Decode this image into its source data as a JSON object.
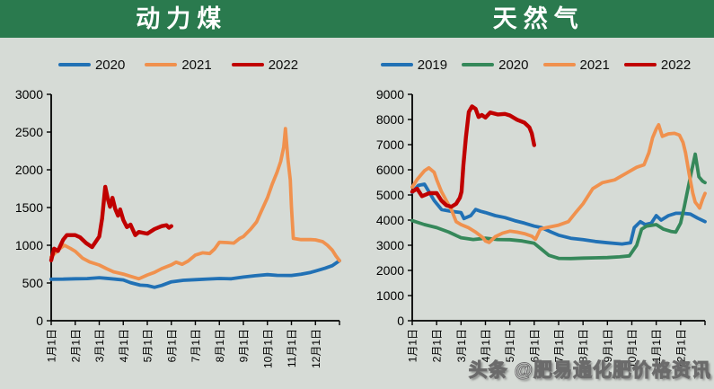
{
  "page": {
    "background": "#d6dbd6",
    "header_color": "#2a7a4e",
    "axis_color": "#000000"
  },
  "watermark": {
    "text": "头条 @肥易通化肥价格资讯"
  },
  "chart_data": [
    {
      "type": "line",
      "title": "动力煤",
      "xlim": [
        1,
        13
      ],
      "ylim": [
        0,
        3000
      ],
      "grid": false,
      "legend_position": "top",
      "y_ticks": [
        0,
        500,
        1000,
        1500,
        2000,
        2500,
        3000
      ],
      "x_tick_labels": [
        "1月1日",
        "2月1日",
        "3月1日",
        "4月1日",
        "5月1日",
        "6月1日",
        "7月1日",
        "8月1日",
        "9月1日",
        "10月1日",
        "11月1日",
        "12月1日"
      ],
      "series": [
        {
          "name": "2020",
          "color": "#2171b5",
          "width": 3.8,
          "points": [
            [
              1,
              550
            ],
            [
              1.5,
              551
            ],
            [
              2,
              556
            ],
            [
              2.5,
              558
            ],
            [
              3,
              570
            ],
            [
              3.3,
              562
            ],
            [
              3.7,
              550
            ],
            [
              4,
              540
            ],
            [
              4.3,
              505
            ],
            [
              4.7,
              472
            ],
            [
              5,
              465
            ],
            [
              5.3,
              443
            ],
            [
              5.6,
              468
            ],
            [
              6,
              515
            ],
            [
              6.5,
              536
            ],
            [
              7,
              544
            ],
            [
              7.5,
              552
            ],
            [
              8,
              559
            ],
            [
              8.5,
              556
            ],
            [
              9,
              579
            ],
            [
              9.5,
              596
            ],
            [
              10,
              611
            ],
            [
              10.4,
              601
            ],
            [
              11,
              600
            ],
            [
              11.4,
              617
            ],
            [
              11.8,
              640
            ],
            [
              12,
              658
            ],
            [
              12.4,
              695
            ],
            [
              12.7,
              730
            ],
            [
              13,
              795
            ]
          ]
        },
        {
          "name": "2021",
          "color": "#f0914e",
          "width": 3.8,
          "points": [
            [
              1,
              845
            ],
            [
              1.3,
              940
            ],
            [
              1.55,
              1000
            ],
            [
              1.8,
              958
            ],
            [
              2,
              920
            ],
            [
              2.3,
              830
            ],
            [
              2.6,
              778
            ],
            [
              3,
              738
            ],
            [
              3.3,
              690
            ],
            [
              3.6,
              648
            ],
            [
              4,
              618
            ],
            [
              4.3,
              588
            ],
            [
              4.65,
              556
            ],
            [
              5,
              606
            ],
            [
              5.3,
              641
            ],
            [
              5.6,
              690
            ],
            [
              6,
              740
            ],
            [
              6.2,
              776
            ],
            [
              6.45,
              748
            ],
            [
              6.7,
              790
            ],
            [
              7,
              870
            ],
            [
              7.3,
              900
            ],
            [
              7.6,
              890
            ],
            [
              7.8,
              950
            ],
            [
              8,
              1040
            ],
            [
              8.3,
              1036
            ],
            [
              8.6,
              1028
            ],
            [
              8.85,
              1092
            ],
            [
              9,
              1115
            ],
            [
              9.3,
              1212
            ],
            [
              9.55,
              1310
            ],
            [
              9.75,
              1455
            ],
            [
              10,
              1630
            ],
            [
              10.2,
              1810
            ],
            [
              10.4,
              1968
            ],
            [
              10.55,
              2110
            ],
            [
              10.68,
              2300
            ],
            [
              10.75,
              2545
            ],
            [
              10.85,
              2150
            ],
            [
              10.95,
              1868
            ],
            [
              11,
              1510
            ],
            [
              11.08,
              1090
            ],
            [
              11.4,
              1075
            ],
            [
              11.8,
              1075
            ],
            [
              12,
              1072
            ],
            [
              12.3,
              1048
            ],
            [
              12.5,
              1000
            ],
            [
              12.7,
              935
            ],
            [
              12.85,
              860
            ],
            [
              13,
              797
            ]
          ]
        },
        {
          "name": "2022",
          "color": "#c00000",
          "width": 4.4,
          "points": [
            [
              1,
              800
            ],
            [
              1.12,
              955
            ],
            [
              1.28,
              924
            ],
            [
              1.5,
              1075
            ],
            [
              1.65,
              1134
            ],
            [
              2,
              1134
            ],
            [
              2.2,
              1106
            ],
            [
              2.45,
              1030
            ],
            [
              2.7,
              975
            ],
            [
              3,
              1115
            ],
            [
              3.12,
              1355
            ],
            [
              3.25,
              1775
            ],
            [
              3.37,
              1598
            ],
            [
              3.45,
              1510
            ],
            [
              3.55,
              1630
            ],
            [
              3.67,
              1478
            ],
            [
              3.78,
              1392
            ],
            [
              3.87,
              1475
            ],
            [
              4,
              1335
            ],
            [
              4.15,
              1240
            ],
            [
              4.3,
              1274
            ],
            [
              4.5,
              1134
            ],
            [
              4.65,
              1176
            ],
            [
              5,
              1154
            ],
            [
              5.3,
              1214
            ],
            [
              5.6,
              1254
            ],
            [
              5.8,
              1266
            ],
            [
              5.9,
              1232
            ],
            [
              6,
              1254
            ]
          ]
        }
      ]
    },
    {
      "type": "line",
      "title": "天然气",
      "xlim": [
        1,
        13
      ],
      "ylim": [
        0,
        9000
      ],
      "grid": false,
      "legend_position": "top",
      "y_ticks": [
        0,
        1000,
        2000,
        3000,
        4000,
        5000,
        6000,
        7000,
        8000,
        9000
      ],
      "x_tick_labels": [
        "1月1日",
        "2月1日",
        "3月1日",
        "4月1日",
        "5月1日",
        "6月1日",
        "7月1日",
        "8月1日",
        "9月1日",
        "10月1日",
        "11月1日",
        "12月1日"
      ],
      "series": [
        {
          "name": "2019",
          "color": "#2171b5",
          "width": 3.8,
          "points": [
            [
              1,
              5100
            ],
            [
              1.25,
              5380
            ],
            [
              1.5,
              5430
            ],
            [
              1.9,
              4780
            ],
            [
              2.2,
              4420
            ],
            [
              2.6,
              4350
            ],
            [
              3,
              4300
            ],
            [
              3.12,
              4060
            ],
            [
              3.4,
              4180
            ],
            [
              3.6,
              4420
            ],
            [
              3.8,
              4350
            ],
            [
              4,
              4300
            ],
            [
              4.4,
              4180
            ],
            [
              4.8,
              4100
            ],
            [
              5.2,
              3980
            ],
            [
              5.6,
              3880
            ],
            [
              6,
              3760
            ],
            [
              6.3,
              3700
            ],
            [
              6.7,
              3520
            ],
            [
              7,
              3400
            ],
            [
              7.5,
              3280
            ],
            [
              8,
              3220
            ],
            [
              8.5,
              3150
            ],
            [
              9,
              3100
            ],
            [
              9.6,
              3050
            ],
            [
              9.95,
              3100
            ],
            [
              10.1,
              3700
            ],
            [
              10.35,
              3940
            ],
            [
              10.55,
              3820
            ],
            [
              10.8,
              3880
            ],
            [
              11,
              4180
            ],
            [
              11.2,
              4000
            ],
            [
              11.5,
              4180
            ],
            [
              11.8,
              4270
            ],
            [
              12.1,
              4270
            ],
            [
              12.4,
              4240
            ],
            [
              12.7,
              4080
            ],
            [
              13,
              3940
            ]
          ]
        },
        {
          "name": "2020",
          "color": "#35885a",
          "width": 3.8,
          "points": [
            [
              1,
              3980
            ],
            [
              1.5,
              3820
            ],
            [
              2,
              3700
            ],
            [
              2.5,
              3520
            ],
            [
              3,
              3300
            ],
            [
              3.5,
              3230
            ],
            [
              4,
              3280
            ],
            [
              4.5,
              3230
            ],
            [
              5,
              3220
            ],
            [
              5.5,
              3170
            ],
            [
              6,
              3080
            ],
            [
              6.3,
              2840
            ],
            [
              6.6,
              2600
            ],
            [
              7,
              2480
            ],
            [
              7.5,
              2470
            ],
            [
              8,
              2490
            ],
            [
              8.5,
              2500
            ],
            [
              9,
              2510
            ],
            [
              9.5,
              2540
            ],
            [
              9.9,
              2580
            ],
            [
              10.2,
              3000
            ],
            [
              10.4,
              3640
            ],
            [
              10.6,
              3760
            ],
            [
              11,
              3820
            ],
            [
              11.3,
              3640
            ],
            [
              11.6,
              3550
            ],
            [
              11.8,
              3520
            ],
            [
              12,
              3880
            ],
            [
              12.15,
              4530
            ],
            [
              12.3,
              5250
            ],
            [
              12.45,
              5960
            ],
            [
              12.6,
              6620
            ],
            [
              12.75,
              5720
            ],
            [
              12.9,
              5550
            ],
            [
              13,
              5490
            ]
          ]
        },
        {
          "name": "2021",
          "color": "#f0914e",
          "width": 3.8,
          "points": [
            [
              1,
              5310
            ],
            [
              1.2,
              5610
            ],
            [
              1.5,
              5960
            ],
            [
              1.68,
              6080
            ],
            [
              1.9,
              5900
            ],
            [
              2,
              5610
            ],
            [
              2.2,
              5130
            ],
            [
              2.4,
              4770
            ],
            [
              2.6,
              4420
            ],
            [
              2.8,
              3940
            ],
            [
              3,
              3820
            ],
            [
              3.3,
              3700
            ],
            [
              3.6,
              3520
            ],
            [
              3.9,
              3300
            ],
            [
              4,
              3170
            ],
            [
              4.15,
              3110
            ],
            [
              4.4,
              3340
            ],
            [
              4.7,
              3480
            ],
            [
              5,
              3560
            ],
            [
              5.3,
              3520
            ],
            [
              5.6,
              3460
            ],
            [
              5.9,
              3360
            ],
            [
              6.05,
              3240
            ],
            [
              6.25,
              3640
            ],
            [
              6.5,
              3700
            ],
            [
              7,
              3800
            ],
            [
              7.4,
              3940
            ],
            [
              7.7,
              4300
            ],
            [
              8,
              4650
            ],
            [
              8.4,
              5250
            ],
            [
              8.8,
              5490
            ],
            [
              9.3,
              5600
            ],
            [
              9.8,
              5880
            ],
            [
              10.2,
              6100
            ],
            [
              10.5,
              6200
            ],
            [
              10.7,
              6680
            ],
            [
              10.85,
              7270
            ],
            [
              11,
              7620
            ],
            [
              11.1,
              7790
            ],
            [
              11.25,
              7330
            ],
            [
              11.5,
              7430
            ],
            [
              11.75,
              7450
            ],
            [
              11.95,
              7380
            ],
            [
              12.1,
              7090
            ],
            [
              12.2,
              6680
            ],
            [
              12.35,
              5840
            ],
            [
              12.5,
              5070
            ],
            [
              12.6,
              4710
            ],
            [
              12.7,
              4590
            ],
            [
              12.78,
              4480
            ],
            [
              12.9,
              4830
            ],
            [
              13,
              5060
            ]
          ]
        },
        {
          "name": "2022",
          "color": "#c00000",
          "width": 4.4,
          "points": [
            [
              1,
              5130
            ],
            [
              1.2,
              5250
            ],
            [
              1.4,
              4950
            ],
            [
              1.7,
              5070
            ],
            [
              2,
              5070
            ],
            [
              2.2,
              4770
            ],
            [
              2.4,
              4590
            ],
            [
              2.6,
              4530
            ],
            [
              2.8,
              4650
            ],
            [
              2.95,
              4890
            ],
            [
              3.02,
              5130
            ],
            [
              3.1,
              6200
            ],
            [
              3.2,
              7300
            ],
            [
              3.32,
              8300
            ],
            [
              3.45,
              8520
            ],
            [
              3.6,
              8420
            ],
            [
              3.72,
              8100
            ],
            [
              3.85,
              8180
            ],
            [
              4,
              8080
            ],
            [
              4.2,
              8280
            ],
            [
              4.5,
              8200
            ],
            [
              4.8,
              8220
            ],
            [
              5,
              8160
            ],
            [
              5.3,
              7990
            ],
            [
              5.6,
              7870
            ],
            [
              5.8,
              7690
            ],
            [
              5.9,
              7450
            ],
            [
              6,
              6980
            ]
          ]
        }
      ]
    }
  ]
}
